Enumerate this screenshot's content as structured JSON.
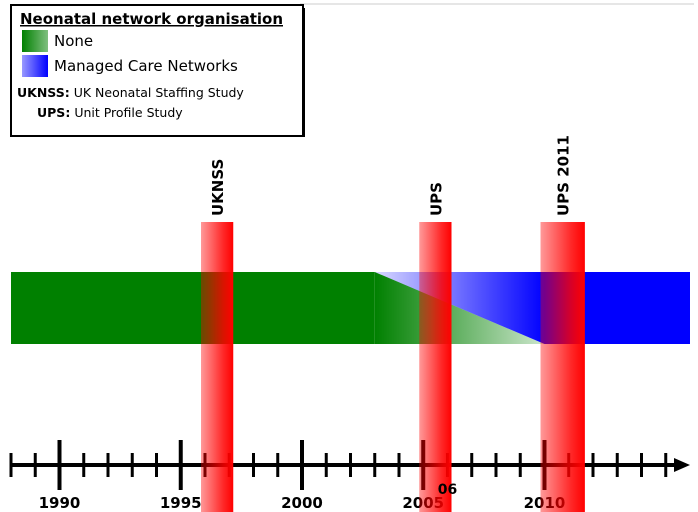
{
  "legend": {
    "title": "Neonatal network organisation",
    "items": [
      {
        "label": "None",
        "color": "#008000"
      },
      {
        "label": "Managed Care Networks",
        "color": "#0000ff"
      }
    ],
    "abbreviations": [
      {
        "abbr": "UKNSS:",
        "text": "UK Neonatal Staffing Study"
      },
      {
        "abbr": "UPS:",
        "text": "Unit Profile Study"
      }
    ]
  },
  "timeline": {
    "year_min": 1988,
    "year_max": 2016,
    "major_ticks": [
      {
        "year": 1990,
        "label": "1990"
      },
      {
        "year": 1995,
        "label": "1995"
      },
      {
        "year": 2000,
        "label": "2000"
      },
      {
        "year": 2005,
        "label": "2005"
      },
      {
        "year": 2010,
        "label": "2010"
      }
    ],
    "extra_label": {
      "year": 2006,
      "text": "06"
    }
  },
  "studies": [
    {
      "label": "UKNSS",
      "start": 1996,
      "end": 1997
    },
    {
      "label": "UPS",
      "start": 2005,
      "end": 2006
    },
    {
      "label": "UPS 2011",
      "start": 2010,
      "end": 2011.5
    }
  ],
  "bands": {
    "none_until": 2003,
    "transition_end": 2010
  },
  "colors": {
    "none": "#008000",
    "networks": "#0000ff",
    "study": "#ff0000",
    "axis": "#000000"
  }
}
